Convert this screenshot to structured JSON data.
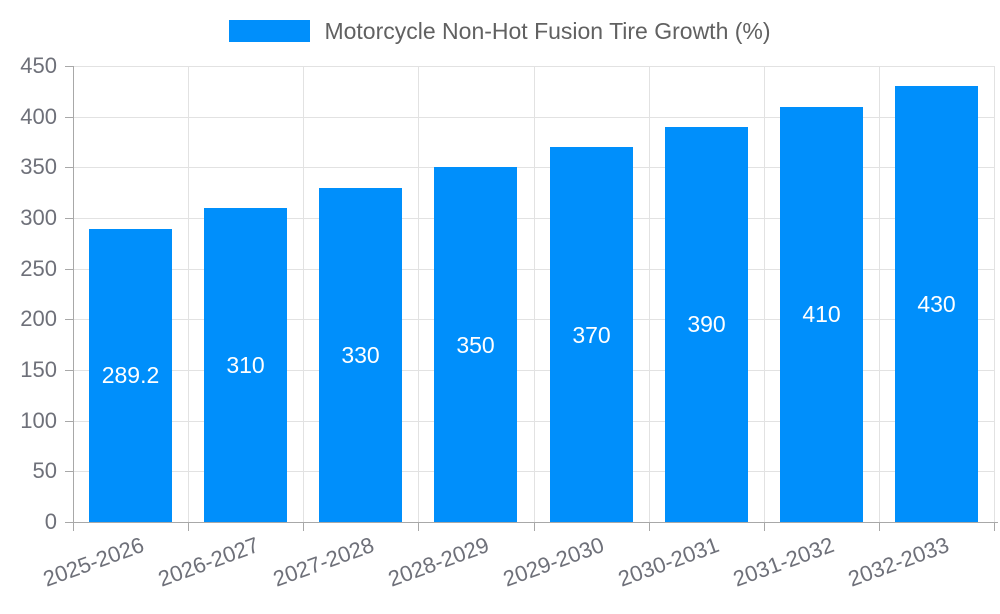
{
  "legend": {
    "label": "Motorcycle Non-Hot Fusion Tire Growth (%)"
  },
  "colors": {
    "bar": "#008FFB",
    "grid": "#e2e2e2",
    "axis": "#a8a8a8",
    "axis_label": "#6E7079",
    "legend_text": "#616161",
    "bar_label": "#ffffff",
    "background": "#ffffff"
  },
  "chart_data": {
    "type": "bar",
    "title": "Motorcycle Non-Hot Fusion Tire Growth (%)",
    "categories": [
      "2025-2026",
      "2026-2027",
      "2027-2028",
      "2028-2029",
      "2029-2030",
      "2030-2031",
      "2031-2032",
      "2032-2033"
    ],
    "values": [
      289.2,
      310,
      330,
      350,
      370,
      390,
      410,
      430
    ],
    "value_labels": [
      "289.2",
      "310",
      "330",
      "350",
      "370",
      "390",
      "410",
      "430"
    ],
    "xlabel": "",
    "ylabel": "",
    "ylim": [
      0,
      450
    ],
    "yticks": [
      0,
      50,
      100,
      150,
      200,
      250,
      300,
      350,
      400,
      450
    ],
    "grid": true,
    "legend_position": "top",
    "x_label_rotation_deg": -20,
    "series": [
      {
        "name": "Motorcycle Non-Hot Fusion Tire Growth (%)",
        "values": [
          289.2,
          310,
          330,
          350,
          370,
          390,
          410,
          430
        ]
      }
    ]
  }
}
